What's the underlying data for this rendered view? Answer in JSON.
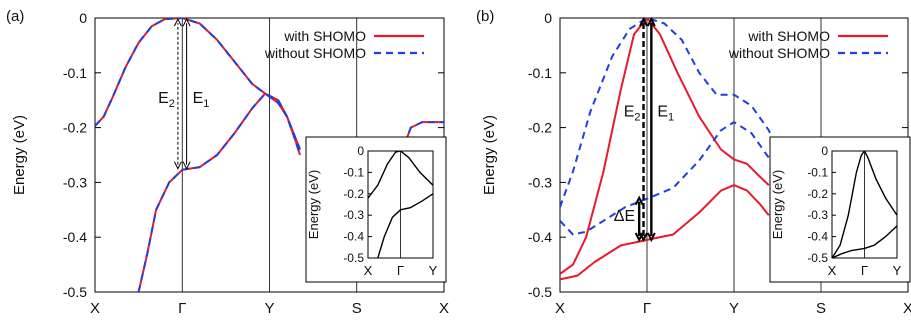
{
  "chart_data": [
    {
      "panel_label": "(a)",
      "type": "line",
      "ylabel": "Energy (eV)",
      "ylim": [
        -0.5,
        0
      ],
      "yticks": [
        "0",
        "-0.1",
        "-0.2",
        "-0.3",
        "-0.4",
        "-0.5"
      ],
      "xticks": [
        "X",
        "Γ",
        "Y",
        "S",
        "X"
      ],
      "legend": {
        "placement": "top-right",
        "entries": [
          "with SHOMO",
          "without SHOMO"
        ]
      },
      "series": [
        {
          "name": "with SHOMO",
          "color": "#e8192c",
          "style": "solid",
          "bands": [
            [
              [
                0,
                -0.197
              ],
              [
                0.1,
                -0.18
              ],
              [
                0.2,
                -0.145
              ],
              [
                0.35,
                -0.09
              ],
              [
                0.5,
                -0.045
              ],
              [
                0.65,
                -0.015
              ],
              [
                0.8,
                -0.002
              ],
              [
                1.0,
                0
              ],
              [
                1.2,
                -0.01
              ],
              [
                1.4,
                -0.04
              ],
              [
                1.6,
                -0.08
              ],
              [
                1.8,
                -0.12
              ],
              [
                1.95,
                -0.138
              ],
              [
                2.1,
                -0.155
              ],
              [
                2.2,
                -0.18
              ],
              [
                2.3,
                -0.225
              ],
              [
                2.35,
                -0.25
              ]
            ],
            [
              [
                0.5,
                -0.5
              ],
              [
                0.6,
                -0.43
              ],
              [
                0.7,
                -0.35
              ],
              [
                0.85,
                -0.3
              ],
              [
                1.0,
                -0.277
              ],
              [
                1.2,
                -0.272
              ],
              [
                1.4,
                -0.25
              ],
              [
                1.6,
                -0.21
              ],
              [
                1.8,
                -0.165
              ],
              [
                1.95,
                -0.138
              ],
              [
                2.1,
                -0.15
              ],
              [
                2.2,
                -0.18
              ],
              [
                2.3,
                -0.22
              ],
              [
                2.35,
                -0.24
              ]
            ],
            [
              [
                3.55,
                -0.23
              ],
              [
                3.62,
                -0.2
              ],
              [
                3.75,
                -0.19
              ],
              [
                4.0,
                -0.19
              ]
            ]
          ]
        },
        {
          "name": "without SHOMO",
          "color": "#1f3fe0",
          "style": "dashed",
          "bands": [
            [
              [
                0,
                -0.197
              ],
              [
                0.1,
                -0.18
              ],
              [
                0.2,
                -0.145
              ],
              [
                0.35,
                -0.09
              ],
              [
                0.5,
                -0.045
              ],
              [
                0.65,
                -0.015
              ],
              [
                0.8,
                -0.002
              ],
              [
                1.0,
                0
              ],
              [
                1.2,
                -0.01
              ],
              [
                1.4,
                -0.04
              ],
              [
                1.6,
                -0.08
              ],
              [
                1.8,
                -0.12
              ],
              [
                1.95,
                -0.138
              ],
              [
                2.1,
                -0.155
              ],
              [
                2.2,
                -0.18
              ],
              [
                2.3,
                -0.225
              ],
              [
                2.35,
                -0.25
              ]
            ],
            [
              [
                0.5,
                -0.5
              ],
              [
                0.6,
                -0.43
              ],
              [
                0.7,
                -0.35
              ],
              [
                0.85,
                -0.3
              ],
              [
                1.0,
                -0.277
              ],
              [
                1.2,
                -0.272
              ],
              [
                1.4,
                -0.25
              ],
              [
                1.6,
                -0.21
              ],
              [
                1.8,
                -0.165
              ],
              [
                1.95,
                -0.138
              ],
              [
                2.1,
                -0.15
              ],
              [
                2.2,
                -0.18
              ],
              [
                2.3,
                -0.22
              ],
              [
                2.35,
                -0.24
              ]
            ],
            [
              [
                3.55,
                -0.23
              ],
              [
                3.62,
                -0.2
              ],
              [
                3.75,
                -0.19
              ],
              [
                4.0,
                -0.19
              ]
            ]
          ]
        }
      ],
      "annotations": [
        {
          "label": "E",
          "sub": "2",
          "x": 0.95,
          "from": -0.275,
          "to": -0.002
        },
        {
          "label": "E",
          "sub": "1",
          "x": 1.05,
          "from": -0.275,
          "to": -0.002
        }
      ],
      "inset": {
        "ylabel": "Energy (eV)",
        "ylim": [
          -0.5,
          0
        ],
        "yticks": [
          "0",
          "-0.1",
          "-0.2",
          "-0.3",
          "-0.4",
          "-0.5"
        ],
        "xticks": [
          "X",
          "Γ",
          "Y"
        ],
        "bands": [
          [
            [
              0,
              -0.22
            ],
            [
              0.3,
              -0.16
            ],
            [
              0.6,
              -0.06
            ],
            [
              0.85,
              -0.005
            ],
            [
              1.0,
              0
            ],
            [
              1.25,
              -0.03
            ],
            [
              1.6,
              -0.1
            ],
            [
              2.0,
              -0.16
            ]
          ],
          [
            [
              0.3,
              -0.5
            ],
            [
              0.5,
              -0.4
            ],
            [
              0.75,
              -0.31
            ],
            [
              1.0,
              -0.275
            ],
            [
              1.3,
              -0.265
            ],
            [
              1.65,
              -0.235
            ],
            [
              2.0,
              -0.2
            ]
          ]
        ]
      }
    },
    {
      "panel_label": "(b)",
      "type": "line",
      "ylabel": "Energy (eV)",
      "ylim": [
        -0.5,
        0
      ],
      "yticks": [
        "0",
        "-0.1",
        "-0.2",
        "-0.3",
        "-0.4",
        "-0.5"
      ],
      "xticks": [
        "X",
        "Γ",
        "Y",
        "S",
        "X"
      ],
      "legend": {
        "placement": "top-right",
        "entries": [
          "with SHOMO",
          "without SHOMO"
        ]
      },
      "series": [
        {
          "name": "with SHOMO",
          "color": "#e8192c",
          "style": "solid",
          "bands": [
            [
              [
                0,
                -0.467
              ],
              [
                0.15,
                -0.45
              ],
              [
                0.3,
                -0.4
              ],
              [
                0.5,
                -0.28
              ],
              [
                0.7,
                -0.13
              ],
              [
                0.85,
                -0.03
              ],
              [
                1.0,
                0
              ],
              [
                1.15,
                -0.03
              ],
              [
                1.35,
                -0.1
              ],
              [
                1.6,
                -0.18
              ],
              [
                1.85,
                -0.24
              ],
              [
                2.0,
                -0.258
              ],
              [
                2.15,
                -0.266
              ],
              [
                2.3,
                -0.29
              ],
              [
                2.4,
                -0.305
              ]
            ],
            [
              [
                0,
                -0.477
              ],
              [
                0.2,
                -0.47
              ],
              [
                0.4,
                -0.445
              ],
              [
                0.7,
                -0.415
              ],
              [
                1.0,
                -0.405
              ],
              [
                1.3,
                -0.395
              ],
              [
                1.6,
                -0.355
              ],
              [
                1.85,
                -0.315
              ],
              [
                2.0,
                -0.305
              ],
              [
                2.15,
                -0.315
              ],
              [
                2.3,
                -0.34
              ],
              [
                2.4,
                -0.36
              ]
            ]
          ]
        },
        {
          "name": "without SHOMO",
          "color": "#1f3fe0",
          "style": "dashed",
          "bands": [
            [
              [
                0,
                -0.345
              ],
              [
                0.15,
                -0.28
              ],
              [
                0.35,
                -0.17
              ],
              [
                0.6,
                -0.07
              ],
              [
                0.8,
                -0.02
              ],
              [
                1.0,
                0
              ],
              [
                1.2,
                -0.01
              ],
              [
                1.4,
                -0.04
              ],
              [
                1.6,
                -0.1
              ],
              [
                1.8,
                -0.14
              ],
              [
                2.0,
                -0.14
              ],
              [
                2.2,
                -0.16
              ],
              [
                2.4,
                -0.205
              ],
              [
                2.5,
                -0.24
              ]
            ],
            [
              [
                0,
                -0.37
              ],
              [
                0.15,
                -0.395
              ],
              [
                0.3,
                -0.39
              ],
              [
                0.5,
                -0.37
              ],
              [
                0.75,
                -0.345
              ],
              [
                1.0,
                -0.33
              ],
              [
                1.3,
                -0.31
              ],
              [
                1.6,
                -0.26
              ],
              [
                1.85,
                -0.205
              ],
              [
                2.0,
                -0.19
              ],
              [
                2.2,
                -0.21
              ],
              [
                2.4,
                -0.255
              ],
              [
                2.5,
                -0.28
              ]
            ],
            [
              [
                3.9,
                -0.38
              ],
              [
                4.0,
                -0.37
              ]
            ]
          ]
        }
      ],
      "annotations": [
        {
          "label": "E",
          "sub": "2",
          "x": 0.96,
          "from": -0.405,
          "to": -0.002
        },
        {
          "label": "E",
          "sub": "1",
          "x": 1.05,
          "from": -0.405,
          "to": -0.002
        },
        {
          "label": "ΔE",
          "sub": "",
          "x": 0.91,
          "from": -0.405,
          "to": -0.328
        }
      ],
      "inset": {
        "ylabel": "Energy (eV)",
        "ylim": [
          -0.5,
          0
        ],
        "yticks": [
          "0",
          "-0.1",
          "-0.2",
          "-0.3",
          "-0.4",
          "-0.5"
        ],
        "xticks": [
          "X",
          "Γ",
          "Y"
        ],
        "bands": [
          [
            [
              0,
              -0.5
            ],
            [
              0.25,
              -0.44
            ],
            [
              0.5,
              -0.3
            ],
            [
              0.75,
              -0.1
            ],
            [
              0.9,
              -0.02
            ],
            [
              1.0,
              0
            ],
            [
              1.1,
              -0.03
            ],
            [
              1.35,
              -0.13
            ],
            [
              1.65,
              -0.22
            ],
            [
              2.0,
              -0.3
            ]
          ],
          [
            [
              0,
              -0.5
            ],
            [
              0.3,
              -0.48
            ],
            [
              0.6,
              -0.465
            ],
            [
              1.0,
              -0.455
            ],
            [
              1.3,
              -0.44
            ],
            [
              1.65,
              -0.4
            ],
            [
              2.0,
              -0.35
            ]
          ]
        ]
      }
    }
  ]
}
